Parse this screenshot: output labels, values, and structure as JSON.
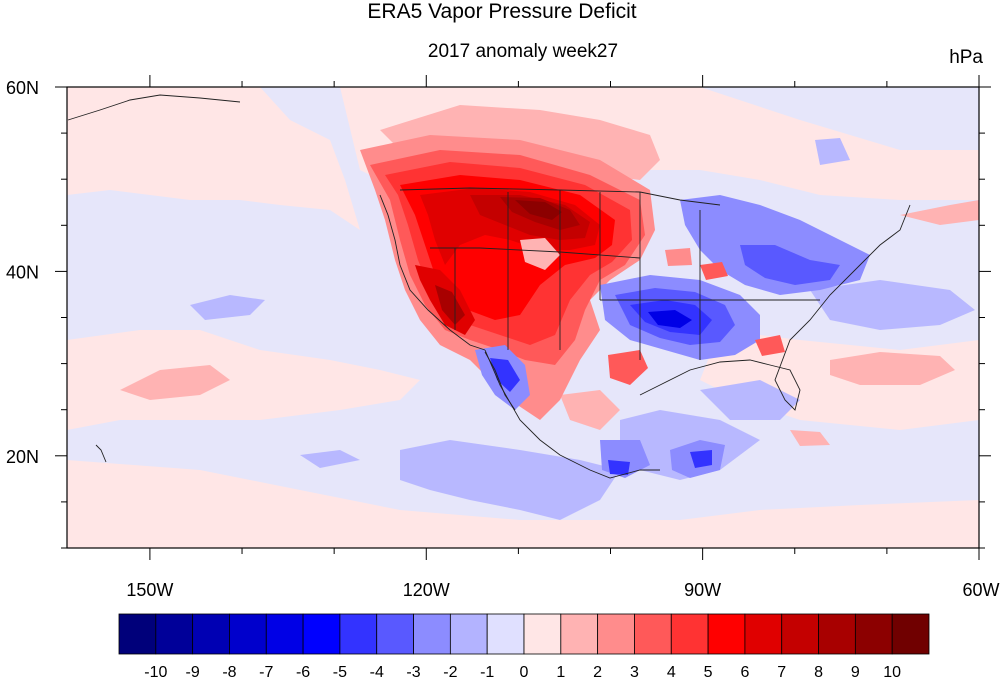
{
  "title": "ERA5 Vapor Pressure Deficit",
  "subtitle": "2017 anomaly week27",
  "units": "hPa",
  "map": {
    "lon_ticks": [
      {
        "lon": -150,
        "label": "150W"
      },
      {
        "lon": -120,
        "label": "120W"
      },
      {
        "lon": -90,
        "label": "90W"
      },
      {
        "lon": -60,
        "label": "60W"
      }
    ],
    "lat_ticks": [
      {
        "lat": 60,
        "label": "60N"
      },
      {
        "lat": 40,
        "label": "40N"
      },
      {
        "lat": 20,
        "label": "20N"
      }
    ],
    "lon_range": [
      -159,
      -60
    ],
    "lat_range": [
      10,
      60
    ]
  },
  "colorbar": {
    "labels": [
      "-10",
      "-9",
      "-8",
      "-7",
      "-6",
      "-5",
      "-4",
      "-3",
      "-2",
      "-1",
      "0",
      "1",
      "2",
      "3",
      "4",
      "5",
      "6",
      "7",
      "8",
      "9",
      "10"
    ],
    "colors": [
      "#00007a",
      "#000099",
      "#0000b3",
      "#0000cc",
      "#0000e6",
      "#0000ff",
      "#3333ff",
      "#5959ff",
      "#8c8cff",
      "#b3b3ff",
      "#e0e0ff",
      "#ffe6e6",
      "#ffb3b3",
      "#ff8c8c",
      "#ff5959",
      "#ff3333",
      "#ff0000",
      "#e00000",
      "#c40000",
      "#a80000",
      "#8c0000",
      "#700000"
    ]
  }
}
